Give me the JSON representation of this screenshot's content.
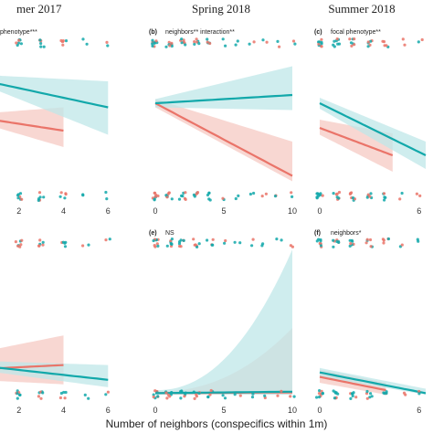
{
  "colors": {
    "teal": "#12a8aa",
    "teal_band": "#bfe7e8",
    "coral": "#ea7469",
    "coral_band": "#f6c9c3"
  },
  "column_titles": [
    "mer 2017",
    "Spring 2018",
    "Summer 2018"
  ],
  "x_axis_label": "Number of neighbors (conspecifics within 1m)",
  "chart_data": [
    {
      "id": "panel-top-left",
      "type": "line",
      "tag": "",
      "annotation": "phenotype***",
      "xlim": [
        0,
        6.4
      ],
      "ylim": [
        0,
        1
      ],
      "xticks": [
        {
          "v": 2,
          "t": "2"
        },
        {
          "v": 4,
          "t": "4"
        },
        {
          "v": 6,
          "t": "6"
        }
      ],
      "series": [
        {
          "color": "teal",
          "x": [
            0,
            6
          ],
          "y": [
            0.76,
            0.55
          ],
          "lo": [
            0.74,
            0.35
          ],
          "hi": [
            0.79,
            0.74
          ]
        },
        {
          "color": "coral",
          "x": [
            0,
            4
          ],
          "y": [
            0.48,
            0.38
          ],
          "lo": [
            0.45,
            0.26
          ],
          "hi": [
            0.5,
            0.55
          ]
        }
      ]
    },
    {
      "id": "panel-top-middle",
      "type": "line",
      "tag": "(b)",
      "annotation": "neighbors** interaction**",
      "xlim": [
        0,
        10
      ],
      "ylim": [
        0,
        1
      ],
      "xticks": [
        {
          "v": 0,
          "t": "0"
        },
        {
          "v": 5,
          "t": "5"
        },
        {
          "v": 10,
          "t": "10"
        }
      ],
      "series": [
        {
          "color": "teal",
          "x": [
            0,
            10
          ],
          "y": [
            0.58,
            0.64
          ],
          "lo": [
            0.55,
            0.53
          ],
          "hi": [
            0.61,
            0.85
          ]
        },
        {
          "color": "coral",
          "x": [
            0,
            10
          ],
          "y": [
            0.58,
            0.05
          ],
          "lo": [
            0.55,
            0.01
          ],
          "hi": [
            0.61,
            0.3
          ]
        }
      ]
    },
    {
      "id": "panel-top-right",
      "type": "line",
      "tag": "(c)",
      "annotation": "focal phenotype**",
      "xlim": [
        0,
        6.4
      ],
      "ylim": [
        0,
        1
      ],
      "xticks": [
        {
          "v": 0,
          "t": "0"
        },
        {
          "v": 6,
          "t": "6"
        }
      ],
      "series": [
        {
          "color": "teal",
          "x": [
            0,
            6.4
          ],
          "y": [
            0.58,
            0.2
          ],
          "lo": [
            0.54,
            0.1
          ],
          "hi": [
            0.62,
            0.3
          ]
        },
        {
          "color": "coral",
          "x": [
            0,
            4.4
          ],
          "y": [
            0.4,
            0.2
          ],
          "lo": [
            0.35,
            0.08
          ],
          "hi": [
            0.46,
            0.36
          ]
        }
      ]
    },
    {
      "id": "panel-bottom-left",
      "type": "line",
      "tag": "",
      "annotation": "",
      "xlim": [
        0,
        6.4
      ],
      "ylim": [
        0,
        1
      ],
      "xticks": [
        {
          "v": 2,
          "t": "2"
        },
        {
          "v": 4,
          "t": "4"
        },
        {
          "v": 6,
          "t": "6"
        }
      ],
      "series": [
        {
          "color": "teal",
          "x": [
            0,
            6
          ],
          "y": [
            0.2,
            0.1
          ],
          "lo": [
            0.17,
            0.05
          ],
          "hi": [
            0.23,
            0.2
          ]
        },
        {
          "color": "coral",
          "x": [
            0,
            4
          ],
          "y": [
            0.17,
            0.2
          ],
          "lo": [
            0.1,
            0.07
          ],
          "hi": [
            0.28,
            0.4
          ]
        }
      ]
    },
    {
      "id": "panel-bottom-middle",
      "type": "line",
      "tag": "(e)",
      "annotation": "NS",
      "xlim": [
        0,
        10
      ],
      "ylim": [
        0,
        1
      ],
      "xticks": [
        {
          "v": 0,
          "t": "0"
        },
        {
          "v": 5,
          "t": "5"
        },
        {
          "v": 10,
          "t": "10"
        }
      ],
      "series": [
        {
          "color": "teal",
          "x": [
            0,
            10
          ],
          "y": [
            0.01,
            0.02
          ],
          "lo": [
            0.0,
            0.0
          ],
          "hi": [
            0.03,
            0.98
          ]
        },
        {
          "color": "coral",
          "x": [
            0,
            10
          ],
          "y": [
            0.01,
            0.015
          ],
          "lo": [
            0.0,
            0.0
          ],
          "hi": [
            0.02,
            0.45
          ]
        }
      ]
    },
    {
      "id": "panel-bottom-right",
      "type": "line",
      "tag": "(f)",
      "annotation": "neighbors*",
      "xlim": [
        0,
        6.4
      ],
      "ylim": [
        0,
        1
      ],
      "xticks": [
        {
          "v": 0,
          "t": "0"
        },
        {
          "v": 6,
          "t": "6"
        }
      ],
      "series": [
        {
          "color": "teal",
          "x": [
            0,
            6.4
          ],
          "y": [
            0.15,
            0.01
          ],
          "lo": [
            0.12,
            0.0
          ],
          "hi": [
            0.18,
            0.04
          ]
        },
        {
          "color": "coral",
          "x": [
            0,
            4
          ],
          "y": [
            0.12,
            0.03
          ],
          "lo": [
            0.08,
            0.0
          ],
          "hi": [
            0.17,
            0.08
          ]
        }
      ]
    }
  ]
}
